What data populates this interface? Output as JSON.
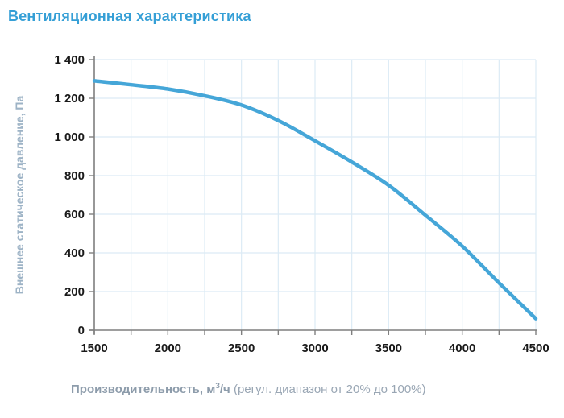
{
  "title": "Вентиляционная характеристика",
  "colors": {
    "title": "#359fd6",
    "curve": "#45a6d8",
    "grid": "#dcebf5",
    "axis": "#7f7f7f",
    "tick_text": "#1a1a1a",
    "y_axis_title": "#9db3c6",
    "x_axis_title": "#8d9cab"
  },
  "y_axis": {
    "title": "Внешнее статическое давление, Па"
  },
  "x_axis": {
    "title_bold_prefix": "Производительность, м",
    "title_sup": "3",
    "title_bold_suffix": "/ч",
    "title_regular": " (регул. диапазон от 20% до 100%)"
  },
  "chart_data": {
    "type": "line",
    "title": "Вентиляционная характеристика",
    "xlabel": "Производительность, м3/ч (регул. диапазон от 20% до 100%)",
    "ylabel": "Внешнее статическое давление, Па",
    "x": [
      1500,
      1750,
      2000,
      2250,
      2500,
      2750,
      3000,
      3250,
      3500,
      3750,
      4000,
      4250,
      4500
    ],
    "y": [
      1290,
      1270,
      1248,
      1213,
      1165,
      1085,
      980,
      870,
      750,
      595,
      435,
      245,
      60
    ],
    "xlim": [
      1500,
      4500
    ],
    "ylim": [
      0,
      1400
    ],
    "x_tick_values": [
      1500,
      2000,
      2500,
      3000,
      3500,
      4000,
      4500
    ],
    "x_tick_labels": [
      "1500",
      "2000",
      "2500",
      "3000",
      "3500",
      "4000",
      "4500"
    ],
    "x_minor_tick_step": 250,
    "y_tick_values": [
      0,
      200,
      400,
      600,
      800,
      1000,
      1200,
      1400
    ],
    "y_tick_labels": [
      "0",
      "200",
      "400",
      "600",
      "800",
      "1 000",
      "1 200",
      "1 400"
    ],
    "grid": true,
    "legend_position": "none",
    "series_name": "fan-curve"
  }
}
